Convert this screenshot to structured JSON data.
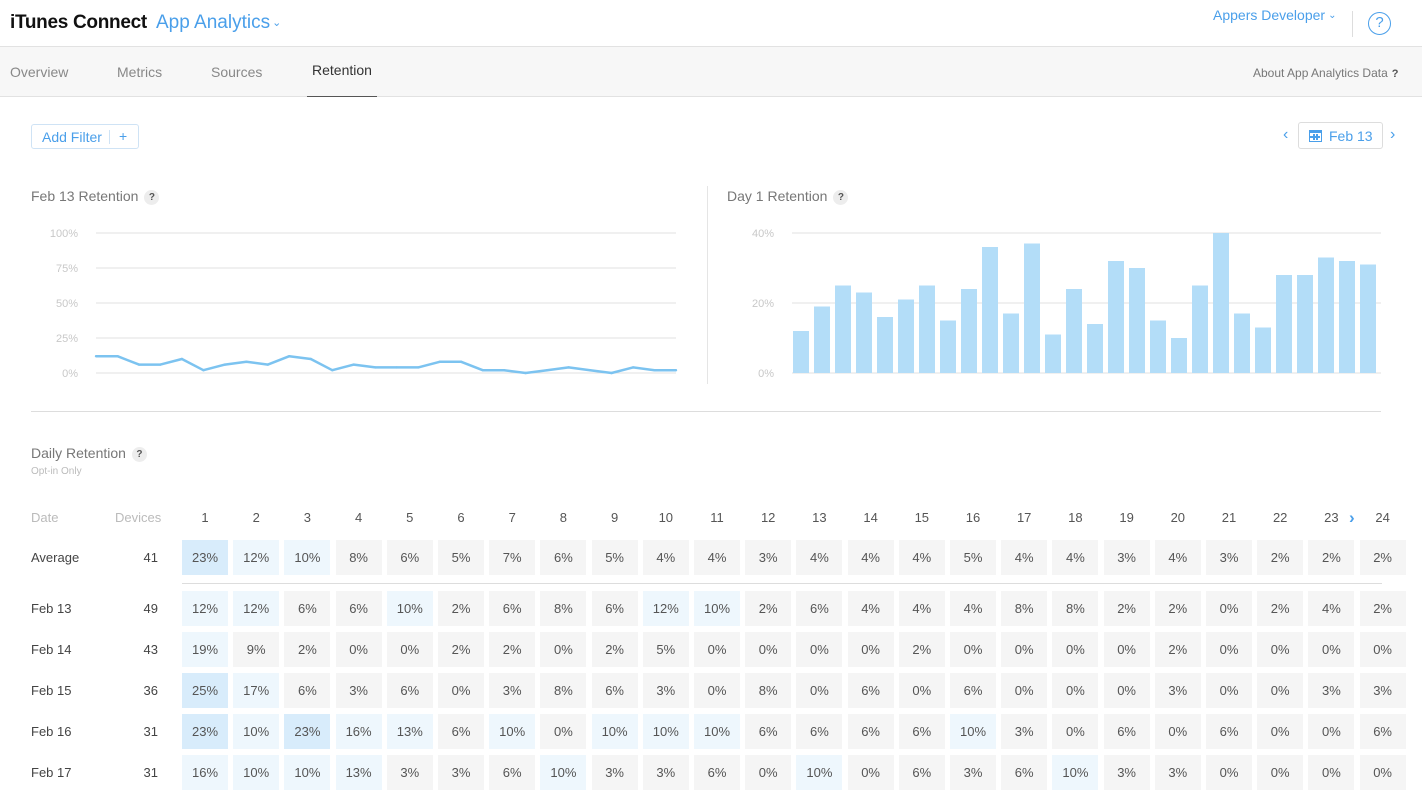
{
  "header": {
    "brand": "iTunes Connect",
    "module": "App Analytics",
    "account": "Appers Developer",
    "help": "?"
  },
  "tabs": [
    {
      "label": "Overview"
    },
    {
      "label": "Metrics"
    },
    {
      "label": "Sources"
    },
    {
      "label": "Retention"
    }
  ],
  "about_link": "About App Analytics Data",
  "about_q": "?",
  "filter": {
    "label": "Add Filter",
    "plus": "+"
  },
  "date_nav": {
    "prev": "‹",
    "value": "Feb 13",
    "next": "›"
  },
  "colors": {
    "accent": "#4a9fea",
    "line": "#7cc3f0",
    "bar": "#b3ddf8"
  },
  "retention_chart": {
    "title": "Feb 13 Retention",
    "q": "?",
    "chart_data": {
      "type": "line",
      "title": "Feb 13 Retention",
      "ylim": [
        0,
        100
      ],
      "y_ticks": [
        "100%",
        "75%",
        "50%",
        "25%",
        "0%"
      ],
      "y_tick_values": [
        100,
        75,
        50,
        25,
        0
      ],
      "values": [
        12,
        12,
        6,
        6,
        10,
        2,
        6,
        8,
        6,
        12,
        10,
        2,
        6,
        4,
        4,
        4,
        8,
        8,
        2,
        2,
        0,
        2,
        4,
        2,
        0,
        4,
        2,
        2
      ]
    }
  },
  "day1_chart": {
    "title": "Day 1 Retention",
    "q": "?",
    "chart_data": {
      "type": "bar",
      "title": "Day 1 Retention",
      "ylim": [
        0,
        40
      ],
      "y_ticks": [
        "40%",
        "20%",
        "0%"
      ],
      "y_tick_values": [
        40,
        20,
        0
      ],
      "values": [
        12,
        19,
        25,
        23,
        16,
        21,
        25,
        15,
        24,
        36,
        17,
        37,
        11,
        24,
        14,
        32,
        30,
        15,
        10,
        25,
        40,
        17,
        13,
        28,
        28,
        33,
        32,
        31
      ]
    }
  },
  "daily": {
    "title": "Daily Retention",
    "q": "?",
    "subtitle": "Opt-in Only",
    "date_header": "Date",
    "devices_header": "Devices",
    "day_headers": [
      "1",
      "2",
      "3",
      "4",
      "5",
      "6",
      "7",
      "8",
      "9",
      "10",
      "11",
      "12",
      "13",
      "14",
      "15",
      "16",
      "17",
      "18",
      "19",
      "20",
      "21",
      "22",
      "23",
      "24"
    ],
    "average": {
      "label": "Average",
      "devices": "41",
      "values": [
        "23%",
        "12%",
        "10%",
        "8%",
        "6%",
        "5%",
        "7%",
        "6%",
        "5%",
        "4%",
        "4%",
        "3%",
        "4%",
        "4%",
        "4%",
        "5%",
        "4%",
        "4%",
        "3%",
        "4%",
        "3%",
        "2%",
        "2%",
        "2%"
      ]
    },
    "rows": [
      {
        "label": "Feb 13",
        "devices": "49",
        "values": [
          "12%",
          "12%",
          "6%",
          "6%",
          "10%",
          "2%",
          "6%",
          "8%",
          "6%",
          "12%",
          "10%",
          "2%",
          "6%",
          "4%",
          "4%",
          "4%",
          "8%",
          "8%",
          "2%",
          "2%",
          "0%",
          "2%",
          "4%",
          "2%"
        ]
      },
      {
        "label": "Feb 14",
        "devices": "43",
        "values": [
          "19%",
          "9%",
          "2%",
          "0%",
          "0%",
          "2%",
          "2%",
          "0%",
          "2%",
          "5%",
          "0%",
          "0%",
          "0%",
          "0%",
          "2%",
          "0%",
          "0%",
          "0%",
          "0%",
          "2%",
          "0%",
          "0%",
          "0%",
          "0%"
        ]
      },
      {
        "label": "Feb 15",
        "devices": "36",
        "values": [
          "25%",
          "17%",
          "6%",
          "3%",
          "6%",
          "0%",
          "3%",
          "8%",
          "6%",
          "3%",
          "0%",
          "8%",
          "0%",
          "6%",
          "0%",
          "6%",
          "0%",
          "0%",
          "0%",
          "3%",
          "0%",
          "0%",
          "3%",
          "3%"
        ]
      },
      {
        "label": "Feb 16",
        "devices": "31",
        "values": [
          "23%",
          "10%",
          "23%",
          "16%",
          "13%",
          "6%",
          "10%",
          "0%",
          "10%",
          "10%",
          "10%",
          "6%",
          "6%",
          "6%",
          "6%",
          "10%",
          "3%",
          "0%",
          "6%",
          "0%",
          "6%",
          "0%",
          "0%",
          "6%"
        ]
      },
      {
        "label": "Feb 17",
        "devices": "31",
        "values": [
          "16%",
          "10%",
          "10%",
          "13%",
          "3%",
          "3%",
          "6%",
          "10%",
          "3%",
          "3%",
          "6%",
          "0%",
          "10%",
          "0%",
          "6%",
          "3%",
          "6%",
          "10%",
          "3%",
          "3%",
          "0%",
          "0%",
          "0%",
          "0%"
        ]
      }
    ]
  }
}
